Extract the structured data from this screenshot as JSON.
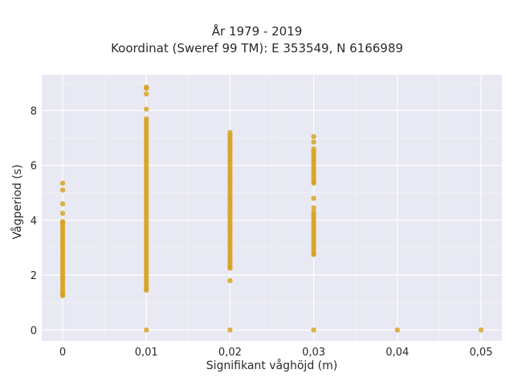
{
  "chart_data": {
    "type": "scatter",
    "title": "År 1979 - 2019",
    "subtitle": "Koordinat (Sweref 99 TM): E 353549, N 6166989",
    "xlabel": "Signifikant våghöjd (m)",
    "ylabel": "Vågperiod (s)",
    "xlim": [
      -0.0025,
      0.0525
    ],
    "ylim": [
      -0.4,
      9.3
    ],
    "x_ticks": [
      0,
      0.01,
      0.02,
      0.03,
      0.04,
      0.05
    ],
    "x_tick_labels": [
      "0",
      "0,01",
      "0,02",
      "0,03",
      "0,04",
      "0,05"
    ],
    "y_ticks": [
      0,
      2,
      4,
      6,
      8
    ],
    "y_tick_labels": [
      "0",
      "2",
      "4",
      "6",
      "8"
    ],
    "grid": true,
    "marker_color": "#d4a019",
    "background_color": "#e8e9f2",
    "series": [
      {
        "x": 0,
        "y": [
          5.35,
          5.1,
          4.6,
          4.25,
          3.95,
          3.9,
          3.8,
          3.7,
          3.6,
          3.5,
          3.4,
          3.3,
          3.2,
          3.1,
          3.0,
          2.9,
          2.8,
          2.7,
          2.6,
          2.5,
          2.4,
          2.3,
          2.2,
          2.1,
          2.0,
          1.9,
          1.8,
          1.7,
          1.6,
          1.5,
          1.4,
          1.3,
          1.25
        ]
      },
      {
        "x": 0.01,
        "y": [
          8.85,
          8.8,
          8.6,
          8.05,
          7.7,
          7.6,
          7.5,
          7.4,
          7.3,
          7.2,
          7.1,
          7.0,
          6.9,
          6.8,
          6.7,
          6.6,
          6.5,
          6.4,
          6.3,
          6.2,
          6.1,
          6.0,
          5.9,
          5.8,
          5.7,
          5.6,
          5.5,
          5.4,
          5.3,
          5.2,
          5.1,
          5.0,
          4.9,
          4.8,
          4.7,
          4.6,
          4.5,
          4.4,
          4.3,
          4.2,
          4.1,
          4.0,
          3.9,
          3.8,
          3.7,
          3.6,
          3.5,
          3.4,
          3.3,
          3.2,
          3.1,
          3.0,
          2.9,
          2.8,
          2.7,
          2.6,
          2.5,
          2.4,
          2.3,
          2.2,
          2.1,
          2.0,
          1.9,
          1.8,
          1.7,
          1.6,
          1.5,
          1.45,
          0
        ]
      },
      {
        "x": 0.02,
        "y": [
          7.2,
          7.1,
          7.0,
          6.9,
          6.8,
          6.7,
          6.6,
          6.5,
          6.4,
          6.3,
          6.2,
          6.1,
          6.0,
          5.9,
          5.8,
          5.7,
          5.6,
          5.5,
          5.4,
          5.3,
          5.2,
          5.1,
          5.0,
          4.9,
          4.8,
          4.7,
          4.6,
          4.5,
          4.4,
          4.3,
          4.2,
          4.1,
          4.0,
          3.9,
          3.8,
          3.7,
          3.6,
          3.5,
          3.4,
          3.3,
          3.2,
          3.1,
          3.0,
          2.9,
          2.8,
          2.7,
          2.6,
          2.5,
          2.4,
          2.3,
          2.25,
          1.8,
          0
        ]
      },
      {
        "x": 0.03,
        "y": [
          7.05,
          6.85,
          6.6,
          6.5,
          6.4,
          6.3,
          6.2,
          6.1,
          6.0,
          5.9,
          5.8,
          5.7,
          5.6,
          5.5,
          5.4,
          5.35,
          4.8,
          4.45,
          4.3,
          4.2,
          4.1,
          4.0,
          3.9,
          3.8,
          3.7,
          3.6,
          3.5,
          3.4,
          3.3,
          3.2,
          3.1,
          3.0,
          2.9,
          2.8,
          2.75,
          0
        ]
      },
      {
        "x": 0.04,
        "y": [
          0
        ]
      },
      {
        "x": 0.05,
        "y": [
          0
        ]
      }
    ]
  }
}
